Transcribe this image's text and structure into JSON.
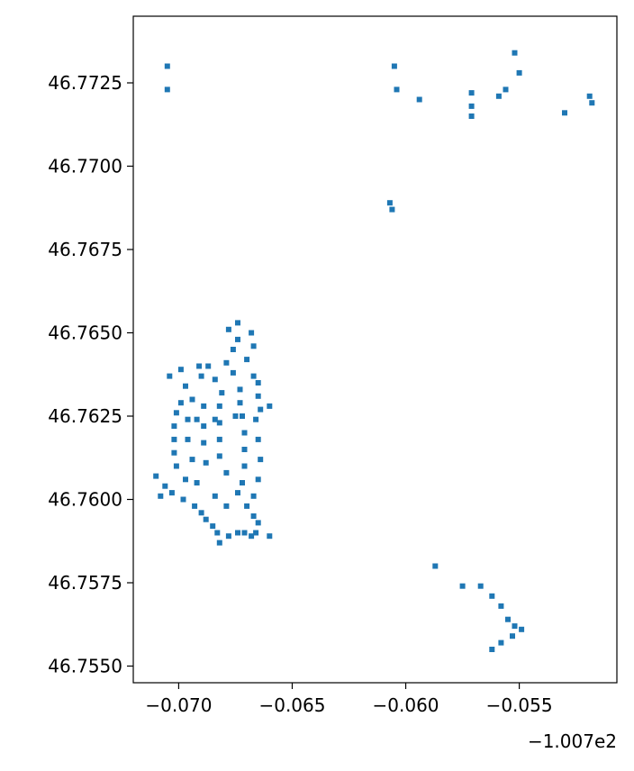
{
  "chart_data": {
    "type": "scatter",
    "title": "",
    "xlabel": "",
    "ylabel": "",
    "x_offset_label": "−1.007e2",
    "xlim": [
      -0.072,
      -0.0507
    ],
    "ylim": [
      46.7545,
      46.7745
    ],
    "x_ticks": [
      -0.07,
      -0.065,
      -0.06,
      -0.055
    ],
    "x_tick_labels": [
      "−0.070",
      "−0.065",
      "−0.060",
      "−0.055"
    ],
    "y_ticks": [
      46.755,
      46.7575,
      46.76,
      46.7625,
      46.765,
      46.7675,
      46.77,
      46.7725
    ],
    "y_tick_labels": [
      "46.7550",
      "46.7575",
      "46.7600",
      "46.7625",
      "46.7650",
      "46.7675",
      "46.7700",
      "46.7725"
    ],
    "grid": false,
    "color": "#1f77b4",
    "series": [
      {
        "points": [
          [
            -0.0705,
            46.773
          ],
          [
            -0.0705,
            46.7723
          ],
          [
            -0.0604,
            46.7723
          ],
          [
            -0.0594,
            46.772
          ],
          [
            -0.0571,
            46.7722
          ],
          [
            -0.0571,
            46.7718
          ],
          [
            -0.0571,
            46.7715
          ],
          [
            -0.0552,
            46.7734
          ],
          [
            -0.055,
            46.7728
          ],
          [
            -0.0556,
            46.7723
          ],
          [
            -0.0559,
            46.7721
          ],
          [
            -0.053,
            46.7716
          ],
          [
            -0.0519,
            46.7721
          ],
          [
            -0.0518,
            46.7719
          ],
          [
            -0.0605,
            46.773
          ],
          [
            -0.0607,
            46.7689
          ],
          [
            -0.0606,
            46.7687
          ],
          [
            -0.0678,
            46.7651
          ],
          [
            -0.0674,
            46.7653
          ],
          [
            -0.0674,
            46.7648
          ],
          [
            -0.0668,
            46.765
          ],
          [
            -0.0667,
            46.7646
          ],
          [
            -0.0676,
            46.7645
          ],
          [
            -0.0679,
            46.7641
          ],
          [
            -0.067,
            46.7642
          ],
          [
            -0.0667,
            46.7637
          ],
          [
            -0.0665,
            46.7635
          ],
          [
            -0.0687,
            46.764
          ],
          [
            -0.0699,
            46.7639
          ],
          [
            -0.0704,
            46.7637
          ],
          [
            -0.0691,
            46.764
          ],
          [
            -0.069,
            46.7637
          ],
          [
            -0.0684,
            46.7636
          ],
          [
            -0.0681,
            46.7632
          ],
          [
            -0.0676,
            46.7638
          ],
          [
            -0.0673,
            46.7633
          ],
          [
            -0.0673,
            46.7629
          ],
          [
            -0.0665,
            46.7631
          ],
          [
            -0.0664,
            46.7627
          ],
          [
            -0.066,
            46.7628
          ],
          [
            -0.0697,
            46.7634
          ],
          [
            -0.0694,
            46.763
          ],
          [
            -0.0699,
            46.7629
          ],
          [
            -0.0701,
            46.7626
          ],
          [
            -0.0702,
            46.7622
          ],
          [
            -0.0702,
            46.7618
          ],
          [
            -0.0702,
            46.7614
          ],
          [
            -0.0701,
            46.761
          ],
          [
            -0.0696,
            46.7624
          ],
          [
            -0.0692,
            46.7624
          ],
          [
            -0.0689,
            46.7628
          ],
          [
            -0.0689,
            46.7622
          ],
          [
            -0.0689,
            46.7617
          ],
          [
            -0.0688,
            46.7611
          ],
          [
            -0.0684,
            46.7624
          ],
          [
            -0.0682,
            46.7628
          ],
          [
            -0.0682,
            46.7623
          ],
          [
            -0.0682,
            46.7618
          ],
          [
            -0.0682,
            46.7613
          ],
          [
            -0.0679,
            46.7608
          ],
          [
            -0.0675,
            46.7625
          ],
          [
            -0.0672,
            46.7625
          ],
          [
            -0.0671,
            46.762
          ],
          [
            -0.0671,
            46.7615
          ],
          [
            -0.0671,
            46.761
          ],
          [
            -0.0672,
            46.7605
          ],
          [
            -0.0666,
            46.7624
          ],
          [
            -0.0665,
            46.7618
          ],
          [
            -0.0664,
            46.7612
          ],
          [
            -0.0665,
            46.7606
          ],
          [
            -0.0667,
            46.7601
          ],
          [
            -0.0696,
            46.7618
          ],
          [
            -0.0694,
            46.7612
          ],
          [
            -0.0697,
            46.7606
          ],
          [
            -0.0692,
            46.7605
          ],
          [
            -0.0684,
            46.7601
          ],
          [
            -0.0679,
            46.7598
          ],
          [
            -0.0674,
            46.7602
          ],
          [
            -0.067,
            46.7598
          ],
          [
            -0.0667,
            46.7595
          ],
          [
            -0.0665,
            46.7593
          ],
          [
            -0.071,
            46.7607
          ],
          [
            -0.0706,
            46.7604
          ],
          [
            -0.0708,
            46.7601
          ],
          [
            -0.0703,
            46.7602
          ],
          [
            -0.0698,
            46.76
          ],
          [
            -0.0693,
            46.7598
          ],
          [
            -0.069,
            46.7596
          ],
          [
            -0.0688,
            46.7594
          ],
          [
            -0.0685,
            46.7592
          ],
          [
            -0.0683,
            46.759
          ],
          [
            -0.0682,
            46.7587
          ],
          [
            -0.0678,
            46.7589
          ],
          [
            -0.0674,
            46.759
          ],
          [
            -0.0671,
            46.759
          ],
          [
            -0.0668,
            46.7589
          ],
          [
            -0.0666,
            46.759
          ],
          [
            -0.066,
            46.7589
          ],
          [
            -0.0587,
            46.758
          ],
          [
            -0.0575,
            46.7574
          ],
          [
            -0.0567,
            46.7574
          ],
          [
            -0.0562,
            46.7571
          ],
          [
            -0.0558,
            46.7568
          ],
          [
            -0.0555,
            46.7564
          ],
          [
            -0.0552,
            46.7562
          ],
          [
            -0.0549,
            46.7561
          ],
          [
            -0.0553,
            46.7559
          ],
          [
            -0.0558,
            46.7557
          ],
          [
            -0.0562,
            46.7555
          ]
        ]
      }
    ]
  }
}
